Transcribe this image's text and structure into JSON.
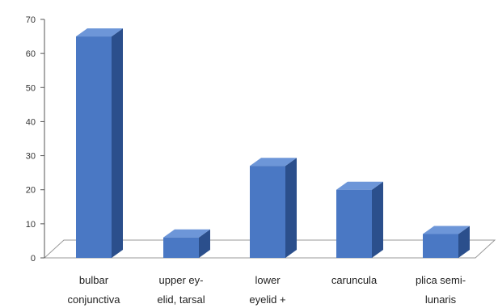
{
  "chart_data": {
    "type": "bar",
    "title": "",
    "xlabel": "",
    "ylabel": "",
    "ylim": [
      0,
      70
    ],
    "yticks": [
      0,
      10,
      20,
      30,
      40,
      50,
      60,
      70
    ],
    "grid": false,
    "legend": "none",
    "style": "3d",
    "categories": [
      [
        "bulbar",
        "conjunctiva"
      ],
      [
        "upper ey-",
        "elid, tarsal"
      ],
      [
        "lower",
        "eyelid +"
      ],
      [
        "caruncula"
      ],
      [
        "plica semi-",
        "lunaris"
      ]
    ],
    "values": [
      65,
      6,
      27,
      20,
      7
    ],
    "colors": {
      "bar_front": "#4a78c4",
      "bar_side": "#2b4f8c",
      "bar_top": "#6d96d8",
      "floor": "#999999"
    }
  }
}
